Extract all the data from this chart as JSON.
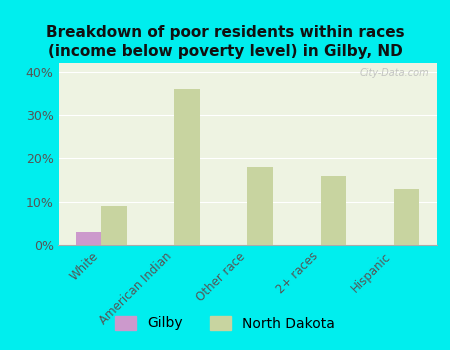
{
  "title": "Breakdown of poor residents within races\n(income below poverty level) in Gilby, ND",
  "categories": [
    "White",
    "American Indian",
    "Other race",
    "2+ races",
    "Hispanic"
  ],
  "gilby_values": [
    3,
    0,
    0,
    0,
    0
  ],
  "nd_values": [
    9,
    36,
    18,
    16,
    13
  ],
  "gilby_color": "#cc99cc",
  "nd_color": "#c8d4a0",
  "background_color": "#00eeee",
  "plot_bg_color": "#eef3e2",
  "ylim": [
    0,
    42
  ],
  "yticks": [
    0,
    10,
    20,
    30,
    40
  ],
  "ytick_labels": [
    "0%",
    "10%",
    "20%",
    "30%",
    "40%"
  ],
  "bar_width": 0.35,
  "legend_labels": [
    "Gilby",
    "North Dakota"
  ],
  "watermark": "City-Data.com"
}
